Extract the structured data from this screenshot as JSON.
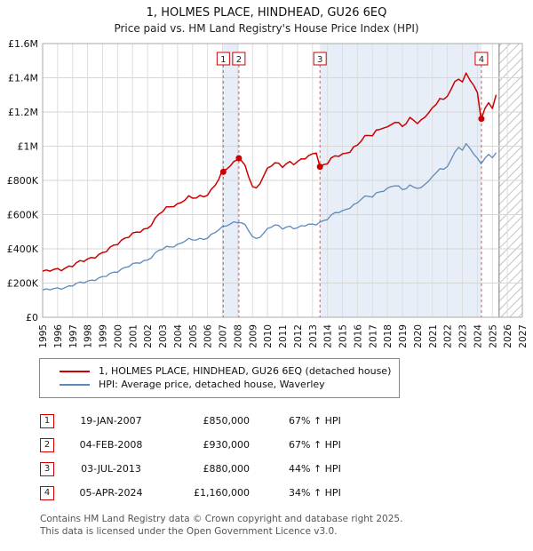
{
  "header": {
    "title": "1, HOLMES PLACE, HINDHEAD, GU26 6EQ",
    "subtitle": "Price paid vs. HM Land Registry's House Price Index (HPI)"
  },
  "legend": [
    {
      "label": "1, HOLMES PLACE, HINDHEAD, GU26 6EQ (detached house)",
      "color": "#cc0000"
    },
    {
      "label": "HPI: Average price, detached house, Waverley",
      "color": "#5d89ba"
    }
  ],
  "transactions": [
    {
      "num": "1",
      "date": "19-JAN-2007",
      "price": "£850,000",
      "pct": "67% ↑ HPI"
    },
    {
      "num": "2",
      "date": "04-FEB-2008",
      "price": "£930,000",
      "pct": "67% ↑ HPI"
    },
    {
      "num": "3",
      "date": "03-JUL-2013",
      "price": "£880,000",
      "pct": "44% ↑ HPI"
    },
    {
      "num": "4",
      "date": "05-APR-2024",
      "price": "£1,160,000",
      "pct": "34% ↑ HPI"
    }
  ],
  "footer": {
    "line1": "Contains HM Land Registry data © Crown copyright and database right 2025.",
    "line2": "This data is licensed under the Open Government Licence v3.0."
  },
  "chart_data": {
    "type": "line",
    "title": "1, HOLMES PLACE, HINDHEAD, GU26 6EQ",
    "unit": "GBP thousands",
    "x_range": [
      1995,
      2027
    ],
    "y_range": [
      0,
      1600
    ],
    "y_tick_step": 200,
    "y_tick_labels": [
      "£0",
      "£200K",
      "£400K",
      "£600K",
      "£800K",
      "£1M",
      "£1.2M",
      "£1.4M",
      "£1.6M"
    ],
    "x_tick_years": [
      1995,
      1996,
      1997,
      1998,
      1999,
      2000,
      2001,
      2002,
      2003,
      2004,
      2005,
      2006,
      2007,
      2008,
      2009,
      2010,
      2011,
      2012,
      2013,
      2014,
      2015,
      2016,
      2017,
      2018,
      2019,
      2020,
      2021,
      2022,
      2023,
      2024,
      2025,
      2026,
      2027
    ],
    "x_start": 1995.0,
    "x_step": 0.25,
    "colors": {
      "property": "#cc0000",
      "hpi": "#5d89ba",
      "band": "#e8eef8",
      "hatch": "#aaaaaa",
      "sale_line": "#dd5555",
      "grid": "#dddddd"
    },
    "bands": [
      [
        2007.05,
        2008.09
      ],
      [
        2013.5,
        2024.27
      ]
    ],
    "hatch_start": 2025.45,
    "series": [
      {
        "name": "1, HOLMES PLACE, HINDHEAD, GU26 6EQ (detached house)",
        "color": "#cc0000",
        "values": [
          270,
          266,
          272,
          276,
          280,
          284,
          290,
          296,
          302,
          312,
          322,
          332,
          340,
          350,
          358,
          364,
          372,
          386,
          402,
          420,
          436,
          450,
          464,
          474,
          482,
          492,
          502,
          512,
          524,
          548,
          574,
          600,
          618,
          634,
          646,
          656,
          662,
          676,
          690,
          698,
          694,
          700,
          706,
          712,
          722,
          742,
          772,
          805,
          850,
          868,
          888,
          908,
          930,
          918,
          878,
          820,
          762,
          750,
          792,
          832,
          868,
          888,
          898,
          890,
          882,
          898,
          910,
          904,
          908,
          918,
          928,
          938,
          952,
          972,
          880,
          892,
          904,
          922,
          936,
          946,
          952,
          962,
          976,
          992,
          1002,
          1032,
          1052,
          1062,
          1072,
          1092,
          1102,
          1112,
          1102,
          1122,
          1142,
          1132,
          1122,
          1142,
          1162,
          1152,
          1132,
          1142,
          1172,
          1202,
          1222,
          1252,
          1282,
          1262,
          1292,
          1332,
          1372,
          1402,
          1382,
          1422,
          1392,
          1352,
          1302,
          1160,
          1222,
          1252,
          1232,
          1300
        ]
      },
      {
        "name": "HPI: Average price, detached house, Waverley",
        "color": "#5d89ba",
        "values": [
          160,
          158,
          162,
          165,
          168,
          172,
          176,
          181,
          187,
          193,
          199,
          205,
          211,
          218,
          224,
          228,
          233,
          241,
          251,
          262,
          272,
          282,
          292,
          300,
          306,
          313,
          320,
          328,
          338,
          355,
          372,
          390,
          398,
          406,
          412,
          418,
          426,
          438,
          448,
          452,
          450,
          453,
          457,
          461,
          469,
          481,
          496,
          510,
          522,
          536,
          548,
          556,
          560,
          554,
          534,
          505,
          470,
          456,
          476,
          496,
          516,
          530,
          536,
          528,
          520,
          528,
          532,
          526,
          522,
          529,
          535,
          539,
          542,
          549,
          557,
          565,
          576,
          591,
          606,
          616,
          621,
          633,
          646,
          656,
          666,
          691,
          701,
          706,
          711,
          726,
          736,
          741,
          746,
          761,
          771,
          763,
          751,
          759,
          769,
          761,
          753,
          749,
          779,
          801,
          821,
          851,
          871,
          856,
          881,
          921,
          961,
          1001,
          981,
          1011,
          991,
          951,
          921,
          901,
          931,
          951,
          941,
          961
        ]
      }
    ],
    "sales": [
      {
        "label": "1",
        "x": 2007.05,
        "y": 850,
        "date": "19-JAN-2007",
        "price_gbp": 850000,
        "pct_above_hpi": "67%"
      },
      {
        "label": "2",
        "x": 2008.09,
        "y": 930,
        "date": "04-FEB-2008",
        "price_gbp": 930000,
        "pct_above_hpi": "67%"
      },
      {
        "label": "3",
        "x": 2013.5,
        "y": 880,
        "date": "03-JUL-2013",
        "price_gbp": 880000,
        "pct_above_hpi": "44%"
      },
      {
        "label": "4",
        "x": 2024.27,
        "y": 1160,
        "date": "05-APR-2024",
        "price_gbp": 1160000,
        "pct_above_hpi": "34%"
      }
    ]
  }
}
